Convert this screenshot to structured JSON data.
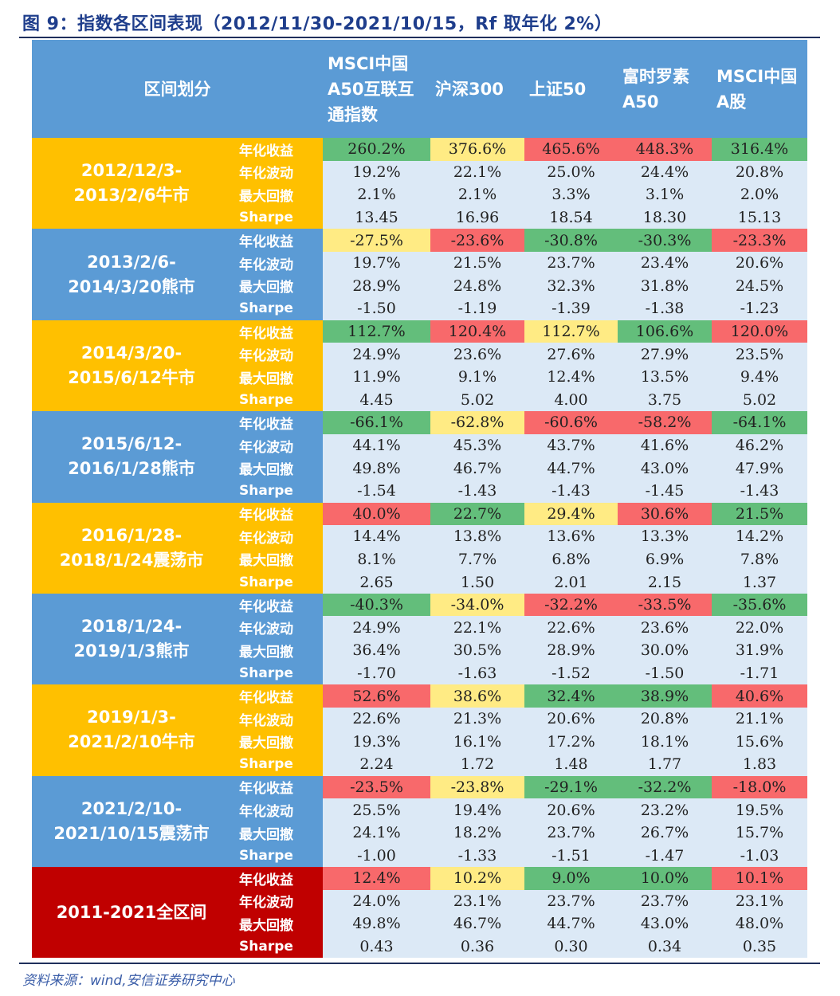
{
  "title": "图 9：指数各区间表现（2012/11/30-2021/10/15，Rf 取年化 2%）",
  "source": "资料来源：wind,安信证券研究中心",
  "header": {
    "period": "区间划分",
    "columns": [
      "MSCI中国A50互联互通指数",
      "沪深300",
      "上证50",
      "富时罗素A50",
      "MSCI中国A股"
    ]
  },
  "metrics": [
    "年化收益",
    "年化波动",
    "最大回撤",
    "Sharpe"
  ],
  "colors": {
    "bull": "#ffc000",
    "bear": "#5b9bd5",
    "total": "#c00000",
    "green": "#63be7b",
    "yellow": "#ffeb84",
    "red": "#f8696b"
  },
  "blocks": [
    {
      "line1": "2012/12/3-",
      "line2": "2013/2/6牛市",
      "type": "orange",
      "hl": [
        "g",
        "y",
        "r",
        "r",
        "g"
      ],
      "rows": [
        [
          "260.2%",
          "376.6%",
          "465.6%",
          "448.3%",
          "316.4%"
        ],
        [
          "19.2%",
          "22.1%",
          "25.0%",
          "24.4%",
          "20.8%"
        ],
        [
          "2.1%",
          "2.1%",
          "3.3%",
          "3.1%",
          "2.0%"
        ],
        [
          "13.45",
          "16.96",
          "18.54",
          "18.30",
          "15.13"
        ]
      ]
    },
    {
      "line1": "2013/2/6-",
      "line2": "2014/3/20熊市",
      "type": "blue",
      "hl": [
        "y",
        "r",
        "g",
        "g",
        "r"
      ],
      "rows": [
        [
          "-27.5%",
          "-23.6%",
          "-30.8%",
          "-30.3%",
          "-23.3%"
        ],
        [
          "19.7%",
          "21.5%",
          "23.7%",
          "23.4%",
          "20.6%"
        ],
        [
          "28.9%",
          "24.8%",
          "32.3%",
          "31.8%",
          "24.5%"
        ],
        [
          "-1.50",
          "-1.19",
          "-1.39",
          "-1.38",
          "-1.23"
        ]
      ]
    },
    {
      "line1": "2014/3/20-",
      "line2": "2015/6/12牛市",
      "type": "orange",
      "hl": [
        "g",
        "r",
        "y",
        "g",
        "r"
      ],
      "rows": [
        [
          "112.7%",
          "120.4%",
          "112.7%",
          "106.6%",
          "120.0%"
        ],
        [
          "24.9%",
          "23.6%",
          "27.6%",
          "27.9%",
          "23.5%"
        ],
        [
          "11.9%",
          "9.1%",
          "12.4%",
          "13.5%",
          "9.4%"
        ],
        [
          "4.45",
          "5.02",
          "4.00",
          "3.75",
          "5.02"
        ]
      ]
    },
    {
      "line1": "2015/6/12-",
      "line2": "2016/1/28熊市",
      "type": "blue",
      "hl": [
        "g",
        "y",
        "r",
        "r",
        "g"
      ],
      "rows": [
        [
          "-66.1%",
          "-62.8%",
          "-60.6%",
          "-58.2%",
          "-64.1%"
        ],
        [
          "44.1%",
          "45.3%",
          "43.7%",
          "41.6%",
          "46.2%"
        ],
        [
          "49.8%",
          "46.7%",
          "44.7%",
          "43.0%",
          "47.9%"
        ],
        [
          "-1.54",
          "-1.43",
          "-1.43",
          "-1.45",
          "-1.43"
        ]
      ]
    },
    {
      "line1": "2016/1/28-",
      "line2": "2018/1/24震荡市",
      "type": "orange",
      "hl": [
        "r",
        "g",
        "y",
        "r",
        "g"
      ],
      "rows": [
        [
          "40.0%",
          "22.7%",
          "29.4%",
          "30.6%",
          "21.5%"
        ],
        [
          "14.4%",
          "13.8%",
          "13.6%",
          "13.3%",
          "14.2%"
        ],
        [
          "8.1%",
          "7.7%",
          "6.8%",
          "6.9%",
          "7.8%"
        ],
        [
          "2.65",
          "1.50",
          "2.01",
          "2.15",
          "1.37"
        ]
      ]
    },
    {
      "line1": "2018/1/24-",
      "line2": "2019/1/3熊市",
      "type": "blue",
      "hl": [
        "g",
        "y",
        "r",
        "r",
        "g"
      ],
      "rows": [
        [
          "-40.3%",
          "-34.0%",
          "-32.2%",
          "-33.5%",
          "-35.6%"
        ],
        [
          "24.9%",
          "22.1%",
          "22.6%",
          "23.6%",
          "22.0%"
        ],
        [
          "36.4%",
          "30.5%",
          "28.9%",
          "30.0%",
          "31.9%"
        ],
        [
          "-1.70",
          "-1.63",
          "-1.52",
          "-1.50",
          "-1.71"
        ]
      ]
    },
    {
      "line1": "2019/1/3-",
      "line2": "2021/2/10牛市",
      "type": "orange",
      "hl": [
        "r",
        "y",
        "g",
        "g",
        "r"
      ],
      "rows": [
        [
          "52.6%",
          "38.6%",
          "32.4%",
          "38.9%",
          "40.6%"
        ],
        [
          "22.6%",
          "21.3%",
          "20.6%",
          "20.8%",
          "21.1%"
        ],
        [
          "19.3%",
          "16.1%",
          "17.2%",
          "18.1%",
          "15.6%"
        ],
        [
          "2.24",
          "1.72",
          "1.48",
          "1.77",
          "1.83"
        ]
      ]
    },
    {
      "line1": "2021/2/10-",
      "line2": "2021/10/15震荡市",
      "type": "blue",
      "hl": [
        "r",
        "y",
        "g",
        "g",
        "r"
      ],
      "rows": [
        [
          "-23.5%",
          "-23.8%",
          "-29.1%",
          "-32.2%",
          "-18.0%"
        ],
        [
          "25.5%",
          "19.4%",
          "20.6%",
          "23.2%",
          "19.5%"
        ],
        [
          "24.1%",
          "18.2%",
          "23.7%",
          "26.7%",
          "15.7%"
        ],
        [
          "-1.00",
          "-1.33",
          "-1.51",
          "-1.47",
          "-1.03"
        ]
      ]
    },
    {
      "line1": "2011-2021全区间",
      "line2": "",
      "type": "red",
      "hl": [
        "r",
        "y",
        "g",
        "g",
        "r"
      ],
      "rows": [
        [
          "12.4%",
          "10.2%",
          "9.0%",
          "10.0%",
          "10.1%"
        ],
        [
          "24.0%",
          "23.1%",
          "23.7%",
          "23.7%",
          "23.1%"
        ],
        [
          "49.8%",
          "46.7%",
          "44.7%",
          "43.0%",
          "48.0%"
        ],
        [
          "0.43",
          "0.36",
          "0.30",
          "0.34",
          "0.35"
        ]
      ]
    }
  ]
}
